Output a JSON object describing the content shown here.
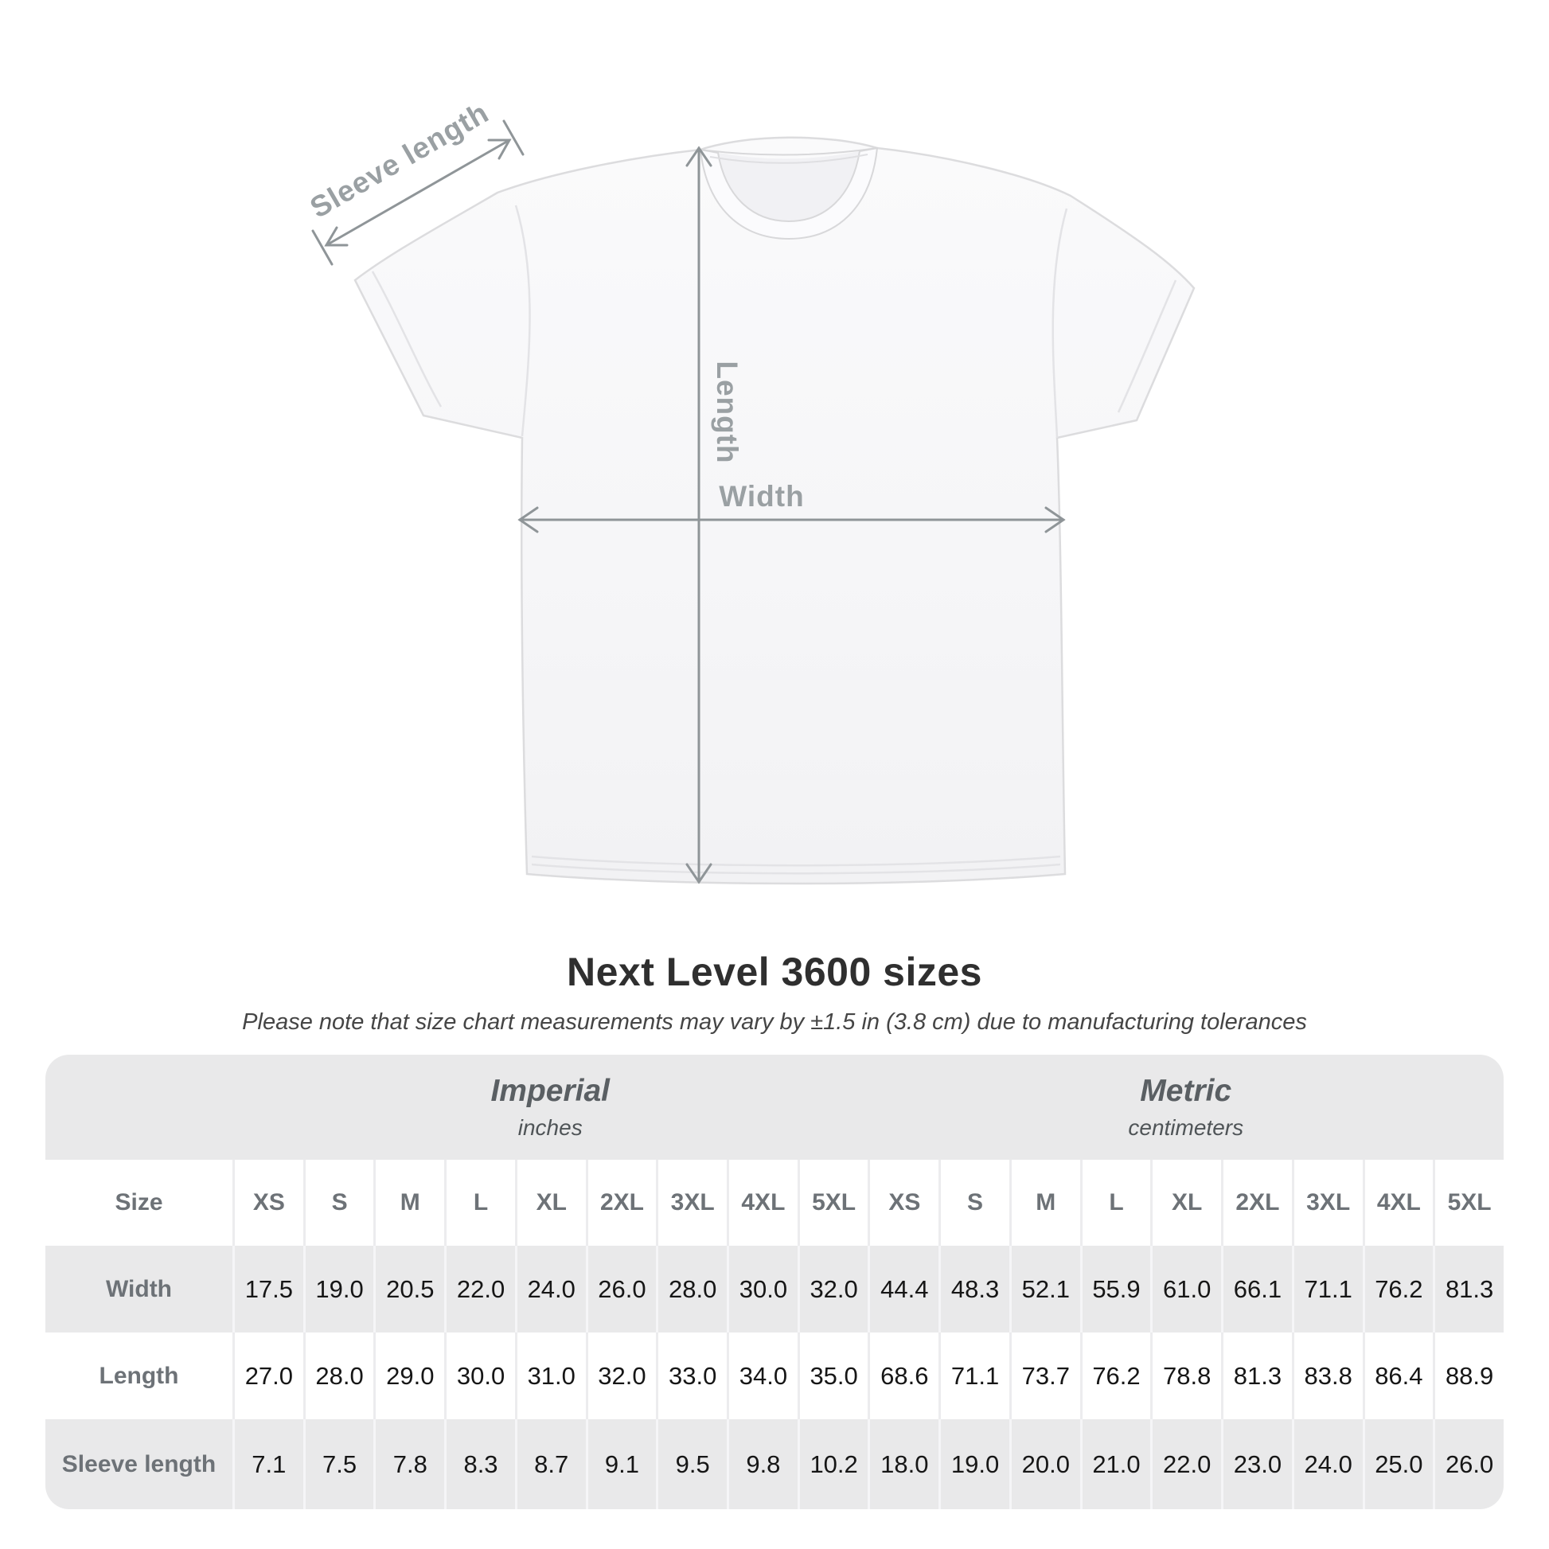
{
  "title": "Next Level 3600 sizes",
  "subtitle": "Please note that size chart measurements may vary by ±1.5 in (3.8 cm) due to manufacturing tolerances",
  "diagram": {
    "sleeve_length_label": "Sleeve length",
    "length_label": "Length",
    "width_label": "Width"
  },
  "colors": {
    "table_stripe": "#e9e9ea",
    "arrow_gray": "#8f9598",
    "diagram_label_gray": "#9aa0a3",
    "row_label_gray": "#6d7277",
    "value_black": "#161616"
  },
  "chart_data": {
    "type": "table",
    "title": "Next Level 3600 sizes",
    "note": "Please note that size chart measurements may vary by ±1.5 in (3.8 cm) due to manufacturing tolerances",
    "size_label": "Size",
    "unit_groups": [
      {
        "name": "Imperial",
        "unit": "inches"
      },
      {
        "name": "Metric",
        "unit": "centimeters"
      }
    ],
    "sizes": [
      "XS",
      "S",
      "M",
      "L",
      "XL",
      "2XL",
      "3XL",
      "4XL",
      "5XL"
    ],
    "rows": [
      {
        "label": "Width",
        "imperial": [
          "17.5",
          "19.0",
          "20.5",
          "22.0",
          "24.0",
          "26.0",
          "28.0",
          "30.0",
          "32.0"
        ],
        "metric": [
          "44.4",
          "48.3",
          "52.1",
          "55.9",
          "61.0",
          "66.1",
          "71.1",
          "76.2",
          "81.3"
        ]
      },
      {
        "label": "Length",
        "imperial": [
          "27.0",
          "28.0",
          "29.0",
          "30.0",
          "31.0",
          "32.0",
          "33.0",
          "34.0",
          "35.0"
        ],
        "metric": [
          "68.6",
          "71.1",
          "73.7",
          "76.2",
          "78.8",
          "81.3",
          "83.8",
          "86.4",
          "88.9"
        ]
      },
      {
        "label": "Sleeve length",
        "imperial": [
          "7.1",
          "7.5",
          "7.8",
          "8.3",
          "8.7",
          "9.1",
          "9.5",
          "9.8",
          "10.2"
        ],
        "metric": [
          "18.0",
          "19.0",
          "20.0",
          "21.0",
          "22.0",
          "23.0",
          "24.0",
          "25.0",
          "26.0"
        ]
      }
    ]
  }
}
